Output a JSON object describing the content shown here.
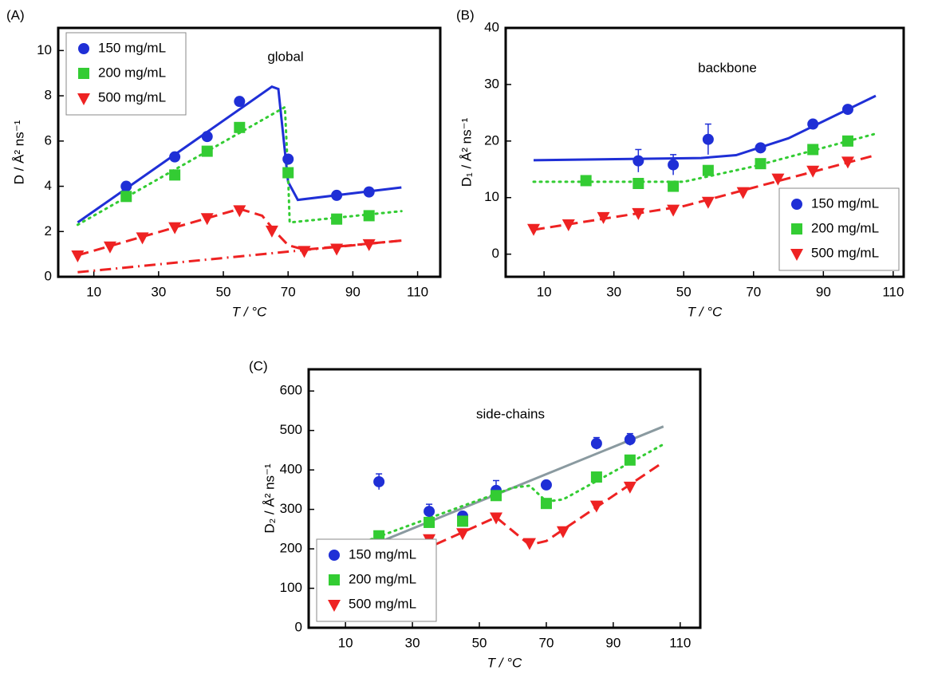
{
  "chart_data": [
    {
      "type": "scatter",
      "panel_label": "(A)",
      "annotation": "global",
      "x_label": "T / °C",
      "y_label": "D / Å² ns⁻¹",
      "xlim": [
        -1,
        117
      ],
      "xticks": [
        10,
        30,
        50,
        70,
        90,
        110
      ],
      "ylim": [
        0,
        11
      ],
      "yticks": [
        0,
        2,
        4,
        6,
        8,
        10
      ],
      "legend": "upper left",
      "series": [
        {
          "name": "150 mg/mL",
          "color": "#1f2fd6",
          "marker": "circle",
          "x": [
            20,
            35,
            45,
            55,
            70,
            85,
            95
          ],
          "values": [
            4.0,
            5.3,
            6.2,
            7.75,
            5.2,
            3.6,
            3.75
          ]
        },
        {
          "name": "200 mg/mL",
          "color": "#33cc33",
          "marker": "square",
          "x": [
            20,
            35,
            45,
            55,
            70,
            85,
            95
          ],
          "values": [
            3.55,
            4.5,
            5.55,
            6.6,
            4.6,
            2.55,
            2.7
          ]
        },
        {
          "name": "500 mg/mL",
          "color": "#ee2222",
          "marker": "triangle",
          "x": [
            5,
            15,
            25,
            35,
            45,
            55,
            65,
            75,
            85,
            95
          ],
          "values": [
            0.95,
            1.35,
            1.75,
            2.2,
            2.6,
            2.95,
            2.05,
            1.15,
            1.25,
            1.45
          ]
        }
      ],
      "fits": [
        {
          "color": "#1f2fd6",
          "style": "solid",
          "x": [
            5,
            65,
            67,
            70,
            73,
            105
          ],
          "values": [
            2.4,
            8.4,
            8.3,
            4.2,
            3.4,
            3.95
          ]
        },
        {
          "color": "#33cc33",
          "style": "dotted",
          "x": [
            5,
            69,
            70,
            70.5,
            105
          ],
          "values": [
            2.3,
            7.5,
            4.5,
            2.4,
            2.9
          ]
        },
        {
          "color": "#ee2222",
          "style": "dashed",
          "x": [
            5,
            55,
            62,
            66,
            70,
            75,
            105
          ],
          "values": [
            0.95,
            3.0,
            2.7,
            2.0,
            1.4,
            1.2,
            1.6
          ]
        },
        {
          "color": "#ee2222",
          "style": "dashdot",
          "x": [
            5,
            105
          ],
          "values": [
            0.2,
            1.6
          ]
        }
      ]
    },
    {
      "type": "scatter",
      "panel_label": "(B)",
      "annotation": "backbone",
      "x_label": "T / °C",
      "y_label": "D₁ / Å² ns⁻¹",
      "xlim": [
        -1,
        113
      ],
      "xticks": [
        10,
        30,
        50,
        70,
        90,
        110
      ],
      "ylim": [
        -4,
        40
      ],
      "yticks": [
        0,
        10,
        20,
        30,
        40
      ],
      "legend": "lower right",
      "series": [
        {
          "name": "150 mg/mL",
          "color": "#1f2fd6",
          "marker": "circle",
          "x": [
            37,
            47,
            57,
            72,
            87,
            97
          ],
          "values": [
            16.5,
            15.8,
            20.3,
            18.8,
            23,
            25.6
          ],
          "errors": [
            2,
            1.8,
            2.7,
            0,
            0,
            0
          ]
        },
        {
          "name": "200 mg/mL",
          "color": "#33cc33",
          "marker": "square",
          "x": [
            22,
            37,
            47,
            57,
            72,
            87,
            97
          ],
          "values": [
            13,
            12.5,
            12,
            14.8,
            16,
            18.5,
            20
          ]
        },
        {
          "name": "500 mg/mL",
          "color": "#ee2222",
          "marker": "triangle",
          "x": [
            7,
            17,
            27,
            37,
            47,
            57,
            67,
            77,
            87,
            97
          ],
          "values": [
            4.5,
            5.3,
            6.6,
            7.3,
            7.9,
            9.3,
            11,
            13.4,
            14.8,
            16.4
          ]
        }
      ],
      "fits": [
        {
          "color": "#1f2fd6",
          "style": "solid",
          "x": [
            7,
            55,
            65,
            80,
            105
          ],
          "values": [
            16.6,
            17,
            17.5,
            20.5,
            28
          ]
        },
        {
          "color": "#33cc33",
          "style": "dotted",
          "x": [
            7,
            50,
            70,
            105
          ],
          "values": [
            12.8,
            12.8,
            15.5,
            21.3
          ]
        },
        {
          "color": "#ee2222",
          "style": "dashed",
          "x": [
            7,
            50,
            105
          ],
          "values": [
            4.3,
            8.5,
            17.5
          ]
        }
      ]
    },
    {
      "type": "scatter",
      "panel_label": "(C)",
      "annotation": "side-chains",
      "x_label": "T / °C",
      "y_label": "D₂ / Å² ns⁻¹",
      "xlim": [
        -1,
        116
      ],
      "xticks": [
        10,
        30,
        50,
        70,
        90,
        110
      ],
      "ylim": [
        0,
        655
      ],
      "yticks": [
        0,
        100,
        200,
        300,
        400,
        500,
        600
      ],
      "legend": "lower left",
      "series": [
        {
          "name": "150 mg/mL",
          "color": "#1f2fd6",
          "marker": "circle",
          "x": [
            20,
            35,
            45,
            55,
            70,
            85,
            95
          ],
          "values": [
            370,
            295,
            283,
            348,
            362,
            467,
            477
          ],
          "errors": [
            20,
            18,
            0,
            25,
            0,
            15,
            15
          ]
        },
        {
          "name": "200 mg/mL",
          "color": "#33cc33",
          "marker": "square",
          "x": [
            20,
            35,
            45,
            55,
            70,
            85,
            95
          ],
          "values": [
            233,
            267,
            270,
            335,
            315,
            382,
            425
          ]
        },
        {
          "name": "500 mg/mL",
          "color": "#ee2222",
          "marker": "triangle",
          "x": [
            5,
            15,
            25,
            25,
            35,
            45,
            55,
            65,
            75,
            85,
            95
          ],
          "values": [
            88,
            135,
            185,
            160,
            225,
            240,
            280,
            215,
            245,
            310,
            358
          ]
        }
      ],
      "fits": [
        {
          "color": "#8a9aa0",
          "style": "solid",
          "x": [
            5,
            105
          ],
          "values": [
            165,
            510
          ]
        },
        {
          "color": "#33cc33",
          "style": "dotted",
          "x": [
            5,
            60,
            65,
            70,
            75,
            105
          ],
          "values": [
            185,
            355,
            360,
            320,
            325,
            465
          ]
        },
        {
          "color": "#ee2222",
          "style": "dashed",
          "x": [
            5,
            55,
            65,
            70,
            105
          ],
          "values": [
            90,
            280,
            210,
            220,
            420
          ]
        }
      ]
    }
  ]
}
